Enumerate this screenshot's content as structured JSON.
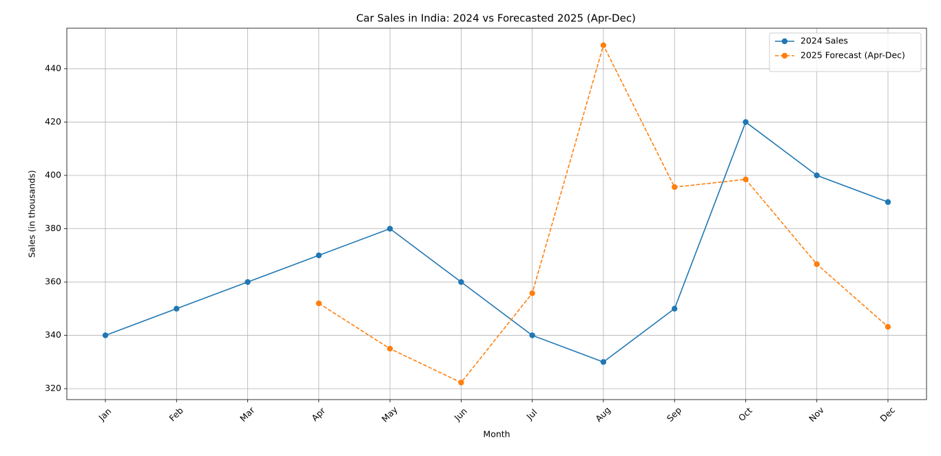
{
  "chart_data": {
    "type": "line",
    "title": "Car Sales in India: 2024 vs Forecasted 2025 (Apr-Dec)",
    "x_label": "Month",
    "y_label": "Sales (in thousands)",
    "categories": [
      "Jan",
      "Feb",
      "Mar",
      "Apr",
      "May",
      "Jun",
      "Jul",
      "Aug",
      "Sep",
      "Oct",
      "Nov",
      "Dec"
    ],
    "series": [
      {
        "name": "2024 Sales",
        "color": "#1f77b4",
        "linestyle": "solid",
        "values": [
          340,
          350,
          360,
          370,
          380,
          360,
          340,
          330,
          350,
          420,
          400,
          390
        ]
      },
      {
        "name": "2025 Forecast (Apr-Dec)",
        "color": "#ff7f0e",
        "linestyle": "dashed",
        "values": [
          null,
          null,
          null,
          352,
          335,
          322.3,
          355.8,
          448.8,
          395.6,
          398.5,
          366.7,
          343.2
        ]
      }
    ],
    "ylim": [
      315.9,
      455.2
    ],
    "yticks": [
      320,
      340,
      360,
      380,
      400,
      420,
      440
    ],
    "grid": true,
    "legend": "upper right"
  }
}
